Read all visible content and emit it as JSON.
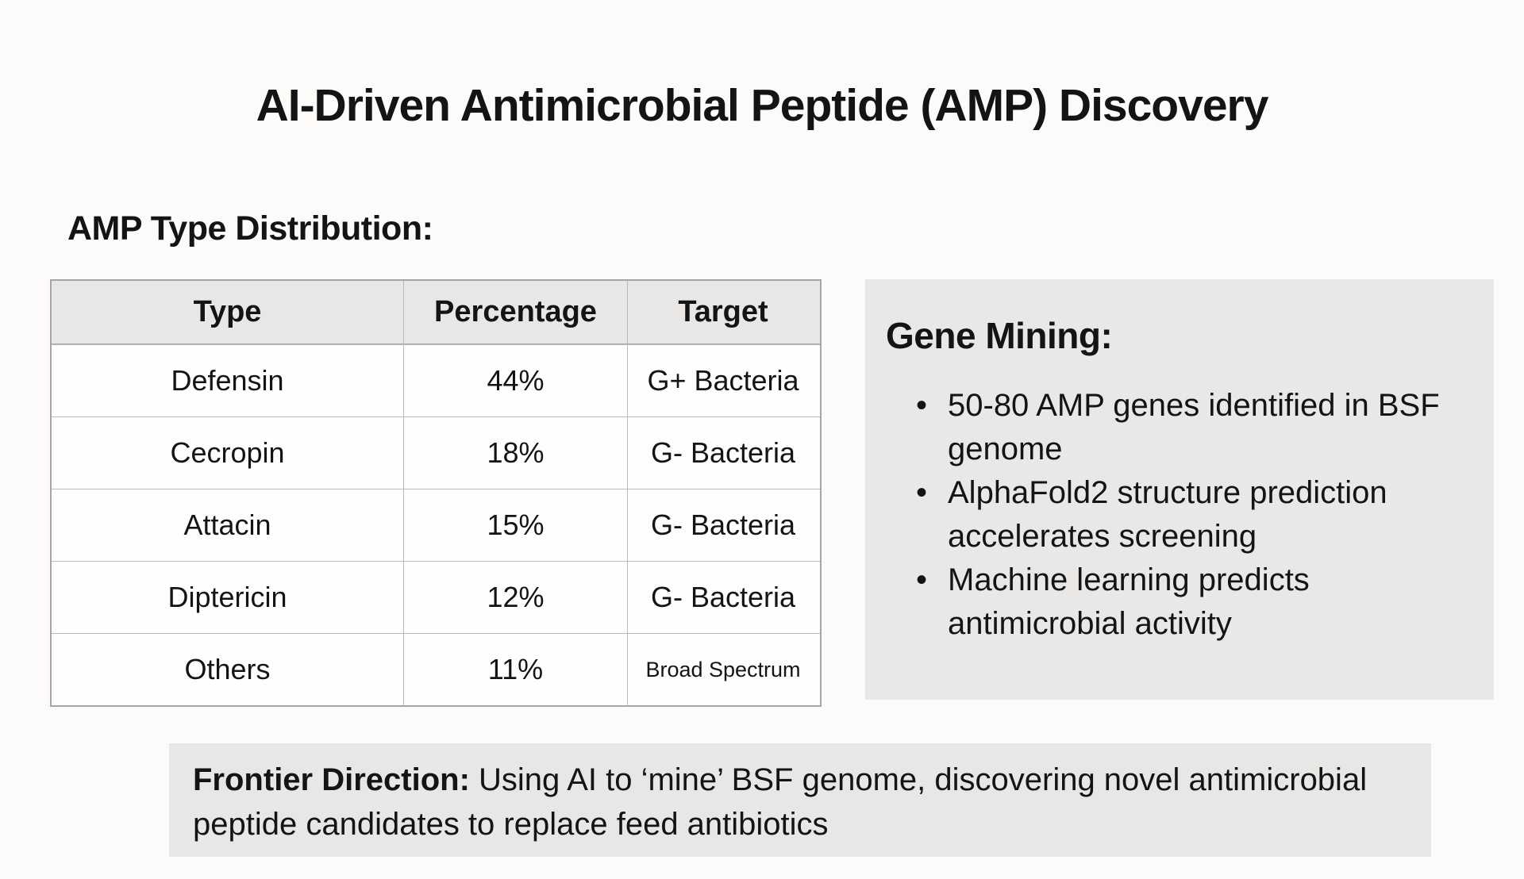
{
  "page": {
    "title": "AI-Driven Antimicrobial Peptide (AMP) Discovery",
    "section_heading": "AMP Type Distribution:"
  },
  "amp_table": {
    "columns": {
      "type": "Type",
      "percentage": "Percentage",
      "target": "Target"
    },
    "rows": [
      {
        "type": "Defensin",
        "percentage": "44%",
        "target": "G+ Bacteria"
      },
      {
        "type": "Cecropin",
        "percentage": "18%",
        "target": "G- Bacteria"
      },
      {
        "type": "Attacin",
        "percentage": "15%",
        "target": "G- Bacteria"
      },
      {
        "type": "Diptericin",
        "percentage": "12%",
        "target": "G- Bacteria"
      },
      {
        "type": "Others",
        "percentage": "11%",
        "target": "Broad Spectrum"
      }
    ]
  },
  "gene_mining": {
    "heading": "Gene Mining:",
    "bullets": [
      "50-80 AMP genes identified in BSF genome",
      "AlphaFold2 structure prediction accelerates screening",
      "Machine learning predicts antimicrobial activity"
    ]
  },
  "frontier": {
    "label": "Frontier Direction:",
    "text": "Using AI to ‘mine’ BSF genome, discovering novel antimicrobial peptide candidates to replace feed antibiotics"
  },
  "colors": {
    "page_background": "#fcfbf9",
    "panel_gray": "#e9e8e6",
    "table_header_gray": "#e8e7e5",
    "table_border_gray": "#b9b9b7",
    "text": "#141414"
  }
}
